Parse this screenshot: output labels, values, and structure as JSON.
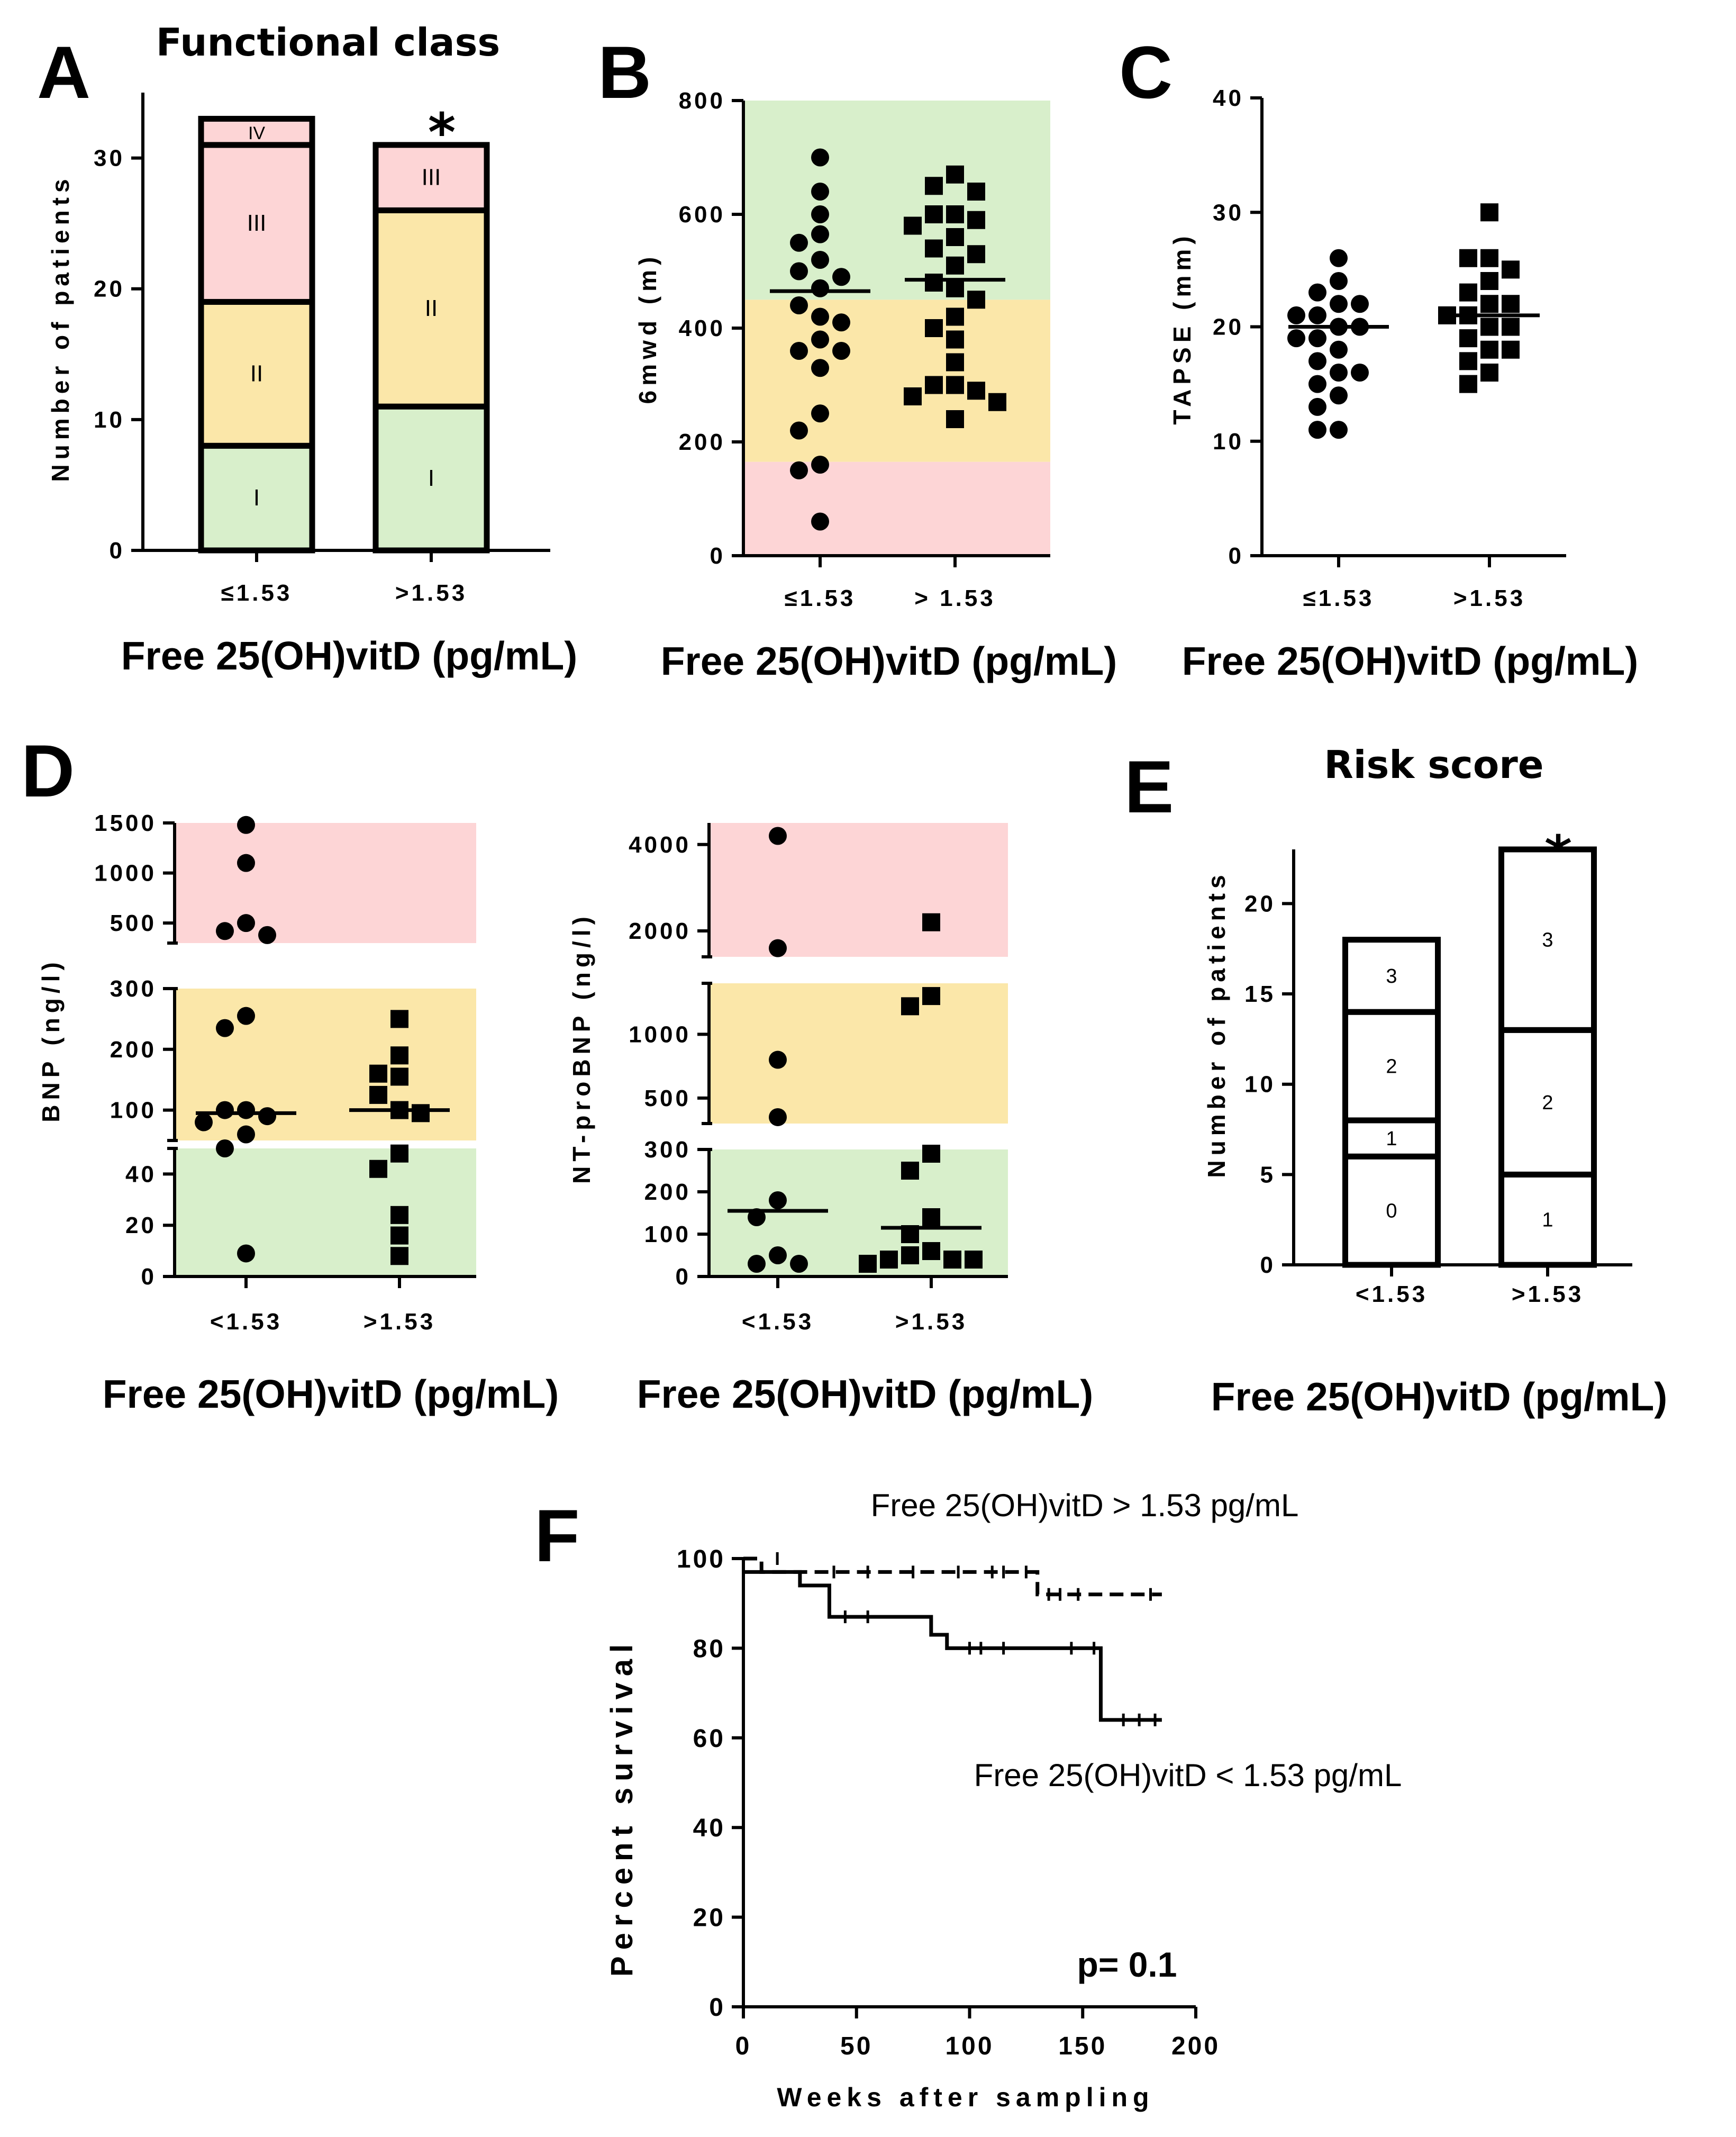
{
  "figure": {
    "panels": {
      "A": {
        "letter": "A",
        "title": "Functional class",
        "ylabel": "Number of patients",
        "xtitle": "Free 25(OH)vitD (pg/mL)",
        "significance": "*"
      },
      "B": {
        "letter": "B",
        "ylabel": "6mwd (m)",
        "xtitle": "Free 25(OH)vitD (pg/mL)"
      },
      "C": {
        "letter": "C",
        "ylabel": "TAPSE (mm)",
        "xtitle": "Free 25(OH)vitD (pg/mL)"
      },
      "D": {
        "letter": "D",
        "ylabel_bnp": "BNP (ng/l)",
        "ylabel_ntprobnp": "NT-proBNP (ng/l)",
        "xtitle_left": "Free 25(OH)vitD (pg/mL)",
        "xtitle_right": "Free 25(OH)vitD (pg/mL)"
      },
      "E": {
        "letter": "E",
        "title": "Risk score",
        "ylabel": "Number of patients",
        "xtitle": "Free 25(OH)vitD (pg/mL)",
        "significance": "*"
      },
      "F": {
        "letter": "F",
        "ylabel": "Percent survival",
        "xlabel": "Weeks after sampling",
        "label_high": "Free 25(OH)vitD > 1.53 pg/mL",
        "label_low": "Free 25(OH)vitD < 1.53 pg/mL",
        "pvalue": "p= 0.1"
      }
    },
    "colors": {
      "green": "#d8efcb",
      "yellow": "#fbe7a9",
      "red": "#fdd5d6",
      "ink": "#000000"
    }
  },
  "chart_data": [
    {
      "id": "A",
      "type": "bar",
      "stacked": true,
      "title": "Functional class",
      "xlabel": "Free 25(OH)vitD (pg/mL)",
      "ylabel": "Number of patients",
      "ylim": [
        0,
        35
      ],
      "yticks": [
        0,
        10,
        20,
        30
      ],
      "categories": [
        "≤1.53",
        ">1.53"
      ],
      "series": [
        {
          "name": "I",
          "values": [
            8,
            11
          ],
          "color": "#d8efcb"
        },
        {
          "name": "II",
          "values": [
            11,
            15
          ],
          "color": "#fbe7a9"
        },
        {
          "name": "III",
          "values": [
            12,
            5
          ],
          "color": "#fdd5d6"
        },
        {
          "name": "IV",
          "values": [
            2,
            0
          ],
          "color": "#fdd5d6"
        }
      ]
    },
    {
      "id": "B",
      "type": "scatter",
      "xlabel": "Free 25(OH)vitD (pg/mL)",
      "ylabel": "6mwd (m)",
      "ylim": [
        0,
        800
      ],
      "yticks": [
        0,
        200,
        400,
        600,
        800
      ],
      "categories": [
        "≤1.53",
        "> 1.53"
      ],
      "bands": [
        {
          "from": 0,
          "to": 165,
          "color": "#fdd5d6"
        },
        {
          "from": 165,
          "to": 450,
          "color": "#fbe7a9"
        },
        {
          "from": 450,
          "to": 800,
          "color": "#d8efcb"
        }
      ],
      "series": [
        {
          "name": "≤1.53",
          "marker": "circle",
          "median": 465,
          "values": [
            700,
            640,
            565,
            600,
            550,
            500,
            520,
            470,
            490,
            440,
            420,
            410,
            380,
            360,
            360,
            330,
            250,
            220,
            160,
            150,
            60
          ]
        },
        {
          "name": "> 1.53",
          "marker": "square",
          "median": 485,
          "values": [
            670,
            650,
            640,
            600,
            600,
            590,
            580,
            560,
            540,
            530,
            510,
            480,
            470,
            450,
            420,
            400,
            380,
            340,
            300,
            300,
            290,
            280,
            270,
            240
          ]
        }
      ]
    },
    {
      "id": "C",
      "type": "scatter",
      "xlabel": "Free 25(OH)vitD (pg/mL)",
      "ylabel": "TAPSE (mm)",
      "ylim": [
        0,
        40
      ],
      "yticks": [
        0,
        10,
        20,
        30,
        40
      ],
      "categories": [
        "≤1.53",
        ">1.53"
      ],
      "series": [
        {
          "name": "≤1.53",
          "marker": "circle",
          "median": 20,
          "values": [
            26,
            24,
            23,
            22,
            22,
            21,
            21,
            20,
            20,
            19,
            19,
            18,
            17,
            16,
            16,
            15,
            14,
            13,
            11,
            11
          ]
        },
        {
          "name": ">1.53",
          "marker": "square",
          "median": 21,
          "values": [
            30,
            26,
            26,
            25,
            24,
            23,
            22,
            22,
            21,
            21,
            20,
            20,
            19,
            18,
            18,
            17,
            16,
            15
          ]
        }
      ]
    },
    {
      "id": "D-BNP",
      "type": "scatter",
      "broken_axis": true,
      "xlabel": "Free 25(OH)vitD (pg/mL)",
      "ylabel": "BNP (ng/l)",
      "categories": [
        "<1.53",
        ">1.53"
      ],
      "axis_segments": [
        {
          "range": [
            0,
            50
          ],
          "ticks": [
            0,
            20,
            40
          ],
          "color": "#d8efcb"
        },
        {
          "range": [
            50,
            300
          ],
          "ticks": [
            100,
            200,
            300
          ],
          "color": "#fbe7a9"
        },
        {
          "range": [
            300,
            1500
          ],
          "ticks": [
            500,
            1000,
            1500
          ],
          "color": "#fdd5d6"
        }
      ],
      "series": [
        {
          "name": "<1.53",
          "marker": "circle",
          "median": 95,
          "values": [
            1480,
            1100,
            500,
            420,
            380,
            255,
            235,
            100,
            100,
            90,
            80,
            60,
            50,
            9
          ]
        },
        {
          "name": ">1.53",
          "marker": "square",
          "median": 100,
          "values": [
            250,
            190,
            160,
            155,
            125,
            95,
            100,
            48,
            42,
            24,
            16,
            8
          ]
        }
      ]
    },
    {
      "id": "D-NTproBNP",
      "type": "scatter",
      "broken_axis": true,
      "xlabel": "Free 25(OH)vitD (pg/mL)",
      "ylabel": "NT-proBNP (ng/l)",
      "categories": [
        "<1.53",
        ">1.53"
      ],
      "axis_segments": [
        {
          "range": [
            0,
            300
          ],
          "ticks": [
            0,
            100,
            200,
            300
          ],
          "color": "#d8efcb"
        },
        {
          "range": [
            300,
            1400
          ],
          "ticks": [
            500,
            1000
          ],
          "color": "#fbe7a9"
        },
        {
          "range": [
            1400,
            4500
          ],
          "ticks": [
            2000,
            4000
          ],
          "color": "#fdd5d6"
        }
      ],
      "series": [
        {
          "name": "<1.53",
          "marker": "circle",
          "median": 155,
          "values": [
            4200,
            1600,
            800,
            350,
            180,
            140,
            50,
            30,
            30
          ]
        },
        {
          "name": ">1.53",
          "marker": "square",
          "median": 115,
          "values": [
            2200,
            1300,
            1220,
            290,
            250,
            140,
            100,
            60,
            40,
            40,
            40,
            50,
            30
          ]
        }
      ]
    },
    {
      "id": "E",
      "type": "bar",
      "stacked": true,
      "title": "Risk score",
      "xlabel": "Free 25(OH)vitD (pg/mL)",
      "ylabel": "Number of patients",
      "ylim": [
        0,
        23
      ],
      "yticks": [
        0,
        5,
        10,
        15,
        20
      ],
      "categories": [
        "<1.53",
        ">1.53"
      ],
      "series": [
        {
          "name": "0",
          "values": [
            6,
            0
          ]
        },
        {
          "name": "1",
          "values": [
            2,
            5
          ]
        },
        {
          "name": "2",
          "values": [
            6,
            8
          ]
        },
        {
          "name": "3",
          "values": [
            4,
            10
          ]
        }
      ]
    },
    {
      "id": "F",
      "type": "line",
      "step": true,
      "title": "",
      "xlabel": "Weeks after sampling",
      "ylabel": "Percent survival",
      "xlim": [
        0,
        200
      ],
      "ylim": [
        0,
        100
      ],
      "xticks": [
        0,
        50,
        100,
        150,
        200
      ],
      "yticks": [
        0,
        20,
        40,
        60,
        80,
        100
      ],
      "series": [
        {
          "name": "Free 25(OH)vitD > 1.53 pg/mL",
          "style": "dashed",
          "x": [
            0,
            8,
            8,
            130,
            130,
            185
          ],
          "y": [
            100,
            100,
            97,
            97,
            92,
            92
          ],
          "censored": [
            [
              15,
              100
            ],
            [
              40,
              97
            ],
            [
              55,
              97
            ],
            [
              75,
              97
            ],
            [
              95,
              97
            ],
            [
              110,
              97
            ],
            [
              115,
              97
            ],
            [
              125,
              97
            ],
            [
              135,
              92
            ],
            [
              140,
              92
            ],
            [
              148,
              92
            ],
            [
              180,
              92
            ]
          ]
        },
        {
          "name": "Free 25(OH)vitD < 1.53 pg/mL",
          "style": "solid",
          "x": [
            0,
            25,
            25,
            38,
            38,
            83,
            83,
            90,
            90,
            158,
            158,
            185
          ],
          "y": [
            97,
            97,
            94,
            94,
            87,
            87,
            83,
            83,
            80,
            80,
            64,
            64
          ],
          "censored": [
            [
              45,
              87
            ],
            [
              55,
              87
            ],
            [
              100,
              80
            ],
            [
              105,
              80
            ],
            [
              115,
              80
            ],
            [
              145,
              80
            ],
            [
              155,
              80
            ],
            [
              168,
              64
            ],
            [
              175,
              64
            ],
            [
              182,
              64
            ]
          ]
        }
      ]
    }
  ]
}
